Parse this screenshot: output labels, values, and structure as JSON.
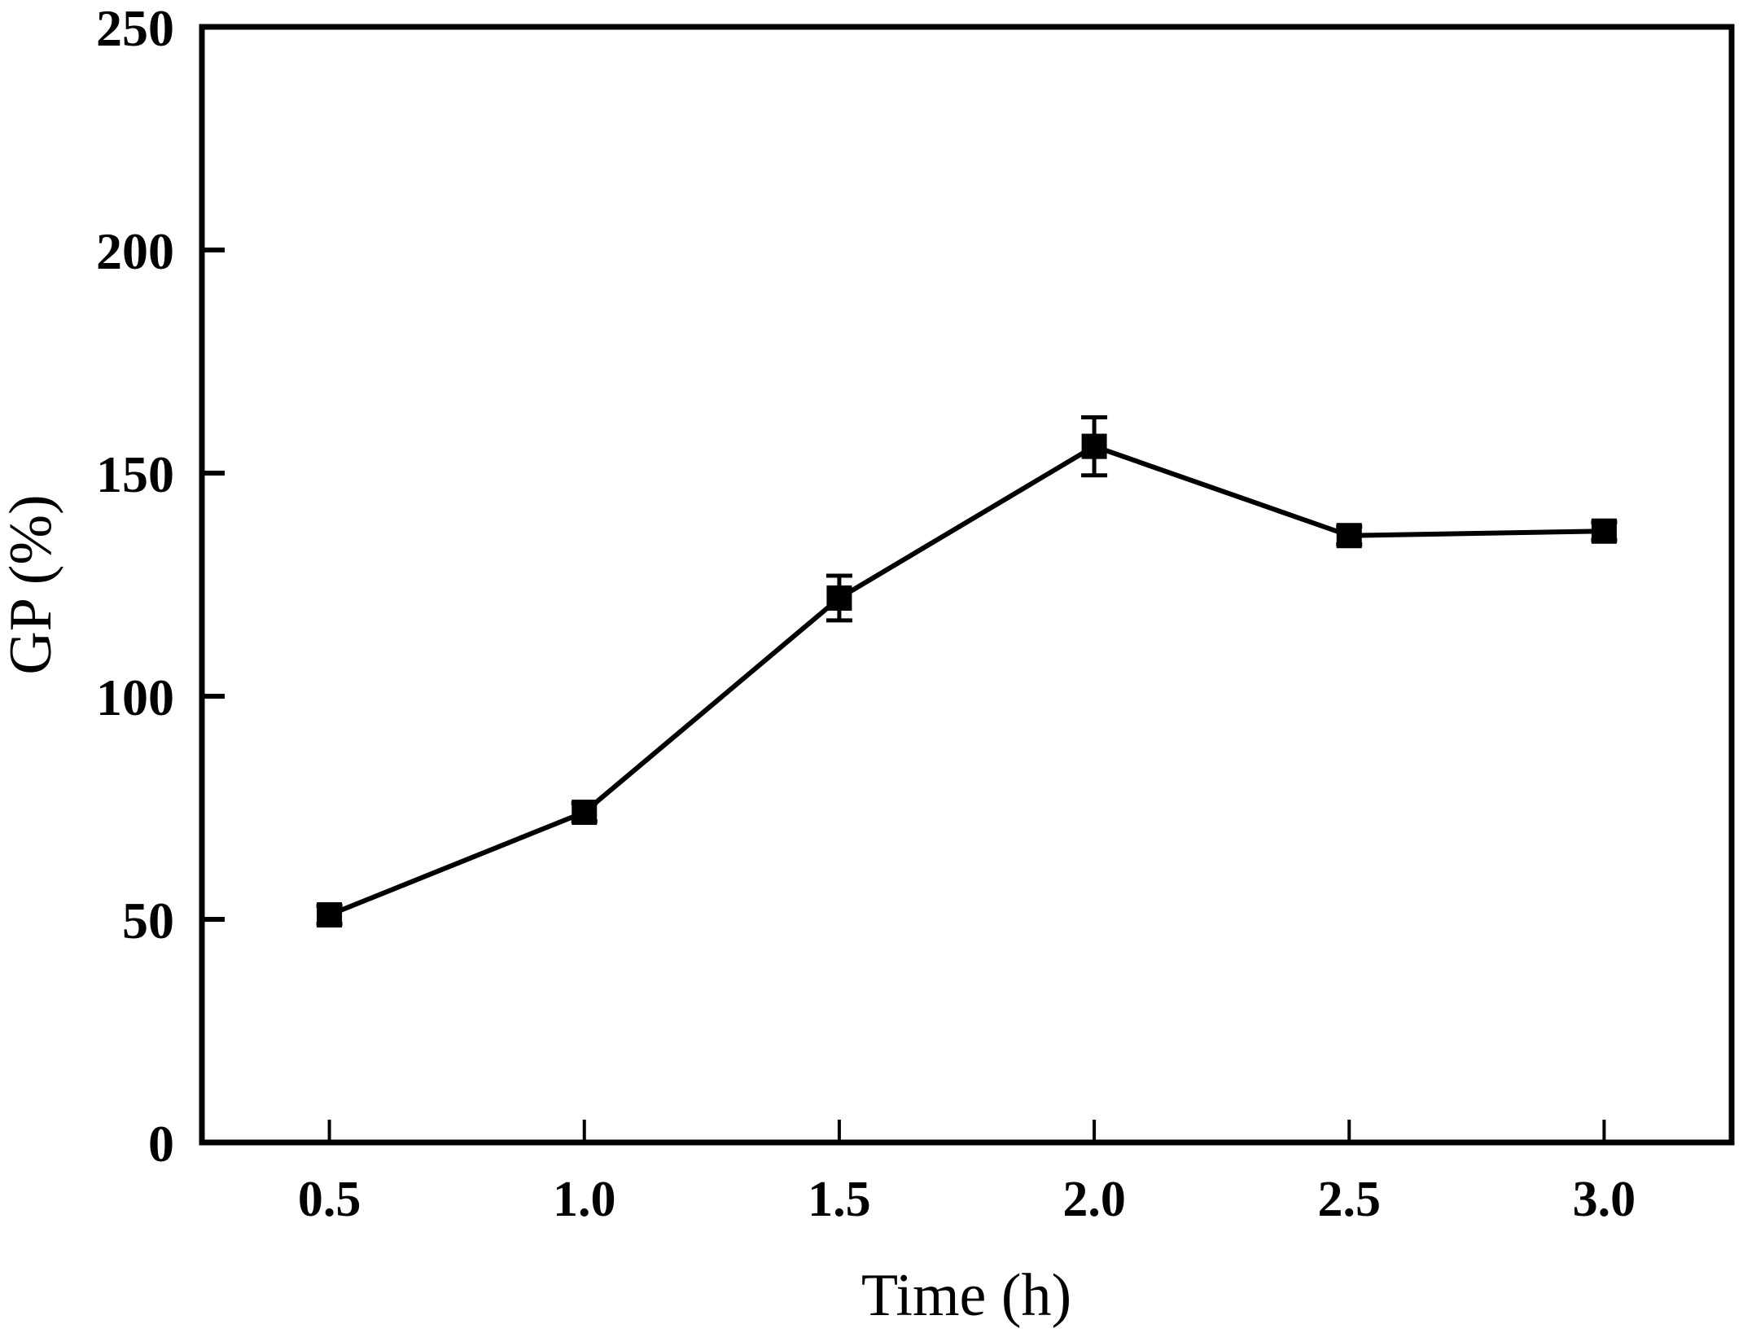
{
  "chart_data": {
    "type": "line",
    "title": "",
    "xlabel": "Time (h)",
    "ylabel": "GP (%)",
    "x": [
      0.5,
      1.0,
      1.5,
      2.0,
      2.5,
      3.0
    ],
    "series": [
      {
        "name": "GP",
        "values": [
          51,
          74,
          122,
          156,
          136,
          137
        ],
        "errors": [
          2,
          2,
          5,
          6.5,
          2,
          2
        ]
      }
    ],
    "xlim": [
      0.25,
      3.25
    ],
    "ylim": [
      0,
      250
    ],
    "x_tick_labels": [
      "0.5",
      "1.0",
      "1.5",
      "2.0",
      "2.5",
      "3.0"
    ],
    "x_tick_values": [
      0.5,
      1.0,
      1.5,
      2.0,
      2.5,
      3.0
    ],
    "y_tick_labels": [
      "0",
      "50",
      "100",
      "150",
      "200",
      "250"
    ],
    "y_tick_values": [
      0,
      50,
      100,
      150,
      200,
      250
    ],
    "grid": false,
    "legend": "none",
    "frame": "full-box",
    "tick_direction": "in",
    "marker": "filled-square",
    "colors": {
      "series": "#000000",
      "text": "#000000",
      "background": "#ffffff"
    }
  }
}
